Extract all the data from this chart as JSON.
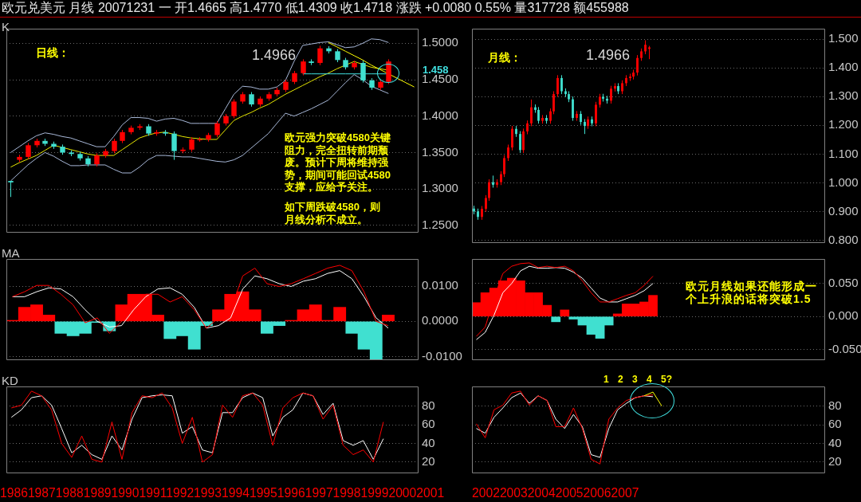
{
  "chart_data": [
    {
      "type": "other",
      "title": "欧元兑美元 月线  20071231 一 开1.4665 高1.4770 低1.4309 收1.4718 涨跌  +0.0080 0.55% 量317728 额455988"
    },
    {
      "type": "candlestick",
      "title": "K",
      "categories": [
        null,
        null,
        null,
        null,
        null,
        null,
        null,
        null,
        null,
        null,
        null,
        null,
        null,
        null,
        null,
        null,
        null,
        null,
        null,
        null,
        null,
        null,
        null,
        null,
        null,
        null,
        null,
        null,
        null,
        null,
        null,
        null,
        null,
        null,
        null,
        null,
        null,
        null,
        null,
        null,
        null,
        null,
        null,
        null,
        null,
        null,
        null,
        null
      ],
      "ohlc": [
        [
          1.311,
          1.311,
          1.289,
          1.309
        ],
        [
          1.34,
          1.347,
          1.337,
          1.344
        ],
        [
          1.344,
          1.363,
          1.341,
          1.36
        ],
        [
          1.36,
          1.369,
          1.357,
          1.366
        ],
        [
          1.366,
          1.369,
          1.359,
          1.362
        ],
        [
          1.362,
          1.365,
          1.355,
          1.358
        ],
        [
          1.358,
          1.361,
          1.347,
          1.35
        ],
        [
          1.35,
          1.353,
          1.345,
          1.348
        ],
        [
          1.348,
          1.351,
          1.339,
          1.342
        ],
        [
          1.342,
          1.345,
          1.331,
          1.334
        ],
        [
          1.334,
          1.349,
          1.331,
          1.346
        ],
        [
          1.346,
          1.355,
          1.343,
          1.352
        ],
        [
          1.352,
          1.369,
          1.349,
          1.366
        ],
        [
          1.366,
          1.381,
          1.363,
          1.378
        ],
        [
          1.378,
          1.387,
          1.375,
          1.384
        ],
        [
          1.384,
          1.389,
          1.381,
          1.386
        ],
        [
          1.386,
          1.389,
          1.373,
          1.376
        ],
        [
          1.376,
          1.381,
          1.373,
          1.378
        ],
        [
          1.378,
          1.381,
          1.373,
          1.376
        ],
        [
          1.376,
          1.379,
          1.34,
          1.352
        ],
        [
          1.352,
          1.357,
          1.349,
          1.354
        ],
        [
          1.354,
          1.371,
          1.351,
          1.368
        ],
        [
          1.368,
          1.371,
          1.365,
          1.368
        ],
        [
          1.368,
          1.377,
          1.365,
          1.374
        ],
        [
          1.374,
          1.393,
          1.371,
          1.39
        ],
        [
          1.39,
          1.403,
          1.387,
          1.4
        ],
        [
          1.4,
          1.423,
          1.397,
          1.42
        ],
        [
          1.42,
          1.433,
          1.417,
          1.43
        ],
        [
          1.43,
          1.433,
          1.413,
          1.416
        ],
        [
          1.416,
          1.427,
          1.413,
          1.424
        ],
        [
          1.424,
          1.433,
          1.421,
          1.43
        ],
        [
          1.43,
          1.439,
          1.427,
          1.436
        ],
        [
          1.436,
          1.45,
          1.433,
          1.447
        ],
        [
          1.447,
          1.462,
          1.444,
          1.459
        ],
        [
          1.459,
          1.478,
          1.456,
          1.475
        ],
        [
          1.475,
          1.478,
          1.47,
          1.473
        ],
        [
          1.473,
          1.4966,
          1.47,
          1.493
        ],
        [
          1.493,
          1.496,
          1.486,
          1.489
        ],
        [
          1.489,
          1.492,
          1.474,
          1.477
        ],
        [
          1.477,
          1.48,
          1.464,
          1.467
        ],
        [
          1.467,
          1.476,
          1.464,
          1.473
        ],
        [
          1.473,
          1.476,
          1.446,
          1.449
        ],
        [
          1.449,
          1.452,
          1.436,
          1.439
        ],
        [
          1.439,
          1.45,
          1.436,
          1.447
        ],
        [
          1.447,
          1.478,
          1.444,
          1.475
        ],
        null,
        null,
        null
      ],
      "colors": [
        "#40e0d0",
        "#ff0000",
        "#ff0000",
        "#ff0000",
        "#40e0d0",
        "#40e0d0",
        "#40e0d0",
        "#40e0d0",
        "#40e0d0",
        "#40e0d0",
        "#ff0000",
        "#ff0000",
        "#ff0000",
        "#ff0000",
        "#ff0000",
        "#ff0000",
        "#40e0d0",
        "#ff0000",
        "#40e0d0",
        "#40e0d0",
        "#ff0000",
        "#ff0000",
        "#ff0000",
        "#ff0000",
        "#ff0000",
        "#ff0000",
        "#ff0000",
        "#ff0000",
        "#40e0d0",
        "#ff0000",
        "#ff0000",
        "#ff0000",
        "#ff0000",
        "#ff0000",
        "#ff0000",
        "#40e0d0",
        "#ff0000",
        "#40e0d0",
        "#40e0d0",
        "#40e0d0",
        "#ff0000",
        "#40e0d0",
        "#40e0d0",
        "#ff0000",
        "#ff0000",
        null,
        null,
        null
      ],
      "series": [
        {
          "type": "line",
          "color": "#a8b8d8",
          "values": [
            1.35,
            1.358,
            1.366,
            1.373,
            1.377,
            1.375,
            1.372,
            1.37,
            1.366,
            1.362,
            1.358,
            1.358,
            1.372,
            1.388,
            1.398,
            1.398,
            1.397,
            1.393,
            1.396,
            1.397,
            1.394,
            1.39,
            1.39,
            1.39,
            1.39,
            1.41,
            1.43,
            1.441,
            1.44,
            1.437,
            1.437,
            1.44,
            1.449,
            1.475,
            1.497,
            1.499,
            1.501,
            1.502,
            1.498,
            1.494,
            1.495,
            1.5,
            1.506,
            1.505,
            1.501,
            null,
            null,
            null
          ]
        },
        {
          "type": "line",
          "color": "#a8b8d8",
          "values": [
            1.311,
            1.322,
            1.333,
            1.342,
            1.35,
            1.345,
            1.338,
            1.332,
            1.332,
            1.333,
            1.333,
            1.333,
            1.327,
            1.322,
            1.322,
            1.33,
            1.34,
            1.346,
            1.346,
            1.345,
            1.344,
            1.344,
            1.342,
            1.34,
            1.338,
            1.337,
            1.34,
            1.346,
            1.356,
            1.366,
            1.376,
            1.39,
            1.404,
            1.4,
            1.405,
            1.41,
            1.416,
            1.422,
            1.434,
            1.446,
            1.457,
            1.45,
            1.441,
            1.436,
            1.431,
            null,
            null,
            null
          ]
        },
        {
          "type": "line",
          "color": "#e6e600",
          "values": [
            1.33,
            1.336,
            1.341,
            1.346,
            1.353,
            1.36,
            1.357,
            1.354,
            1.351,
            1.348,
            1.346,
            1.346,
            1.346,
            1.354,
            1.362,
            1.37,
            1.374,
            1.377,
            1.378,
            1.375,
            1.372,
            1.37,
            1.369,
            1.368,
            1.368,
            1.381,
            1.394,
            1.4,
            1.405,
            1.411,
            1.416,
            1.423,
            1.43,
            1.436,
            1.442,
            1.448,
            1.454,
            1.459,
            1.465,
            1.47,
            1.475,
            1.471,
            1.467,
            1.465,
            1.463,
            null,
            null,
            null
          ]
        },
        {
          "type": "line",
          "color": "#ffff00",
          "values": [
            null,
            null,
            null,
            null,
            null,
            null,
            null,
            null,
            null,
            null,
            null,
            null,
            null,
            null,
            null,
            null,
            null,
            null,
            null,
            null,
            null,
            null,
            null,
            null,
            null,
            null,
            null,
            null,
            null,
            null,
            null,
            null,
            null,
            null,
            null,
            null,
            null,
            1.501,
            1.495,
            1.489,
            1.483,
            1.477,
            1.47,
            1.464,
            1.458,
            1.452,
            1.446,
            1.44
          ]
        },
        {
          "type": "line",
          "color": "#40e0e0",
          "values": [
            null,
            null,
            null,
            null,
            null,
            null,
            null,
            null,
            null,
            null,
            null,
            null,
            null,
            null,
            null,
            null,
            null,
            null,
            null,
            null,
            null,
            null,
            null,
            null,
            null,
            null,
            null,
            null,
            null,
            null,
            null,
            null,
            null,
            null,
            1.458,
            1.458,
            1.458,
            1.458,
            1.458,
            1.458,
            1.458,
            1.458,
            1.458,
            1.458,
            1.458,
            null,
            null,
            null
          ]
        }
      ],
      "ylim": [
        1.24,
        1.52
      ],
      "yticks": [
        {
          "value": 1.25,
          "label": "1.2500"
        },
        {
          "value": 1.3,
          "label": "1.3000"
        },
        {
          "value": 1.35,
          "label": "1.3500"
        },
        {
          "value": 1.4,
          "label": "1.4000"
        },
        {
          "value": 1.45,
          "label": "1.4500"
        },
        {
          "value": 1.5,
          "label": "1.5000"
        }
      ],
      "grid": "y",
      "tick_labels": "y",
      "annotations": [
        "日线：",
        "1.4966",
        "1.458",
        "欧元强力突破4580关键阻力，完全扭转前期颓废。预计下周将维持强势，期间可能回试4580支撑，应给予关注。",
        "如下周跌破4580，则月线分析不成立。"
      ]
    },
    {
      "type": "candlestick",
      "categories": [
        null,
        null,
        null,
        null,
        null,
        null,
        null,
        null,
        null,
        null,
        null,
        null,
        null,
        null,
        null,
        null,
        null,
        null,
        null,
        null,
        null,
        null,
        null,
        null,
        null,
        null,
        null,
        null,
        null,
        null,
        null,
        null,
        null,
        null,
        null,
        null,
        null,
        null,
        null,
        null,
        null,
        null,
        null,
        null,
        null,
        null,
        null,
        null,
        null,
        null,
        null,
        null,
        null,
        null,
        null,
        null,
        null,
        null,
        null,
        null,
        null,
        null,
        null,
        null,
        null,
        null,
        null,
        null,
        null,
        null,
        null,
        null,
        null,
        null,
        null,
        null,
        null,
        null,
        null,
        null,
        null,
        null,
        null,
        null,
        null,
        null,
        null,
        null,
        null,
        null,
        null,
        null,
        null
      ],
      "ohlc": [
        [
          0.91,
          0.92,
          0.89,
          0.9
        ],
        [
          0.9,
          0.91,
          0.871,
          0.881
        ],
        [
          0.881,
          0.919,
          0.871,
          0.909
        ],
        [
          0.909,
          0.957,
          0.899,
          0.947
        ],
        [
          0.947,
          1.012,
          0.937,
          1.002
        ],
        [
          1.002,
          1.025,
          0.983,
          0.993
        ],
        [
          0.993,
          1.012,
          0.983,
          1.002
        ],
        [
          1.002,
          1.04,
          0.992,
          1.03
        ],
        [
          1.03,
          1.096,
          1.02,
          1.086
        ],
        [
          1.086,
          1.133,
          1.076,
          1.123
        ],
        [
          1.123,
          1.198,
          1.113,
          1.188
        ],
        [
          1.188,
          1.198,
          1.16,
          1.17
        ],
        [
          1.17,
          1.18,
          1.104,
          1.114
        ],
        [
          1.114,
          1.189,
          1.104,
          1.179
        ],
        [
          1.179,
          1.217,
          1.169,
          1.207
        ],
        [
          1.207,
          1.29,
          1.197,
          1.263
        ],
        [
          1.263,
          1.273,
          1.244,
          1.254
        ],
        [
          1.254,
          1.264,
          1.206,
          1.216
        ],
        [
          1.216,
          1.236,
          1.206,
          1.226
        ],
        [
          1.226,
          1.236,
          1.206,
          1.216
        ],
        [
          1.216,
          1.259,
          1.206,
          1.249
        ],
        [
          1.249,
          1.319,
          1.239,
          1.309
        ],
        [
          1.309,
          1.375,
          1.299,
          1.365
        ],
        [
          1.365,
          1.375,
          1.309,
          1.319
        ],
        [
          1.319,
          1.329,
          1.299,
          1.309
        ],
        [
          1.309,
          1.319,
          1.281,
          1.291
        ],
        [
          1.291,
          1.301,
          1.216,
          1.226
        ],
        [
          1.226,
          1.25,
          1.216,
          1.24
        ],
        [
          1.24,
          1.25,
          1.202,
          1.212
        ],
        [
          1.212,
          1.222,
          1.17,
          1.198
        ],
        [
          1.198,
          1.231,
          1.188,
          1.221
        ],
        [
          1.221,
          1.231,
          1.197,
          1.207
        ],
        [
          1.207,
          1.282,
          1.197,
          1.272
        ],
        [
          1.272,
          1.31,
          1.262,
          1.3
        ],
        [
          1.3,
          1.31,
          1.283,
          1.293
        ],
        [
          1.293,
          1.303,
          1.276,
          1.286
        ],
        [
          1.286,
          1.338,
          1.276,
          1.328
        ],
        [
          1.328,
          1.347,
          1.318,
          1.337
        ],
        [
          1.337,
          1.347,
          1.309,
          1.319
        ],
        [
          1.319,
          1.357,
          1.309,
          1.347
        ],
        [
          1.347,
          1.375,
          1.337,
          1.365
        ],
        [
          1.365,
          1.38,
          1.355,
          1.37
        ],
        [
          1.37,
          1.394,
          1.36,
          1.384
        ],
        [
          1.384,
          1.445,
          1.374,
          1.435
        ],
        [
          1.435,
          1.468,
          1.425,
          1.458
        ],
        [
          1.458,
          1.4966,
          1.448,
          1.481
        ],
        [
          1.4665,
          1.477,
          1.4309,
          1.4718
        ],
        null,
        null,
        null,
        null,
        null,
        null,
        null,
        null,
        null,
        null,
        null,
        null,
        null,
        null,
        null,
        null,
        null,
        null,
        null,
        null,
        null,
        null,
        null,
        null,
        null,
        null,
        null,
        null,
        null,
        null,
        null,
        null,
        null,
        null,
        null,
        null,
        null,
        null,
        null,
        null,
        null,
        null,
        null,
        null,
        null,
        null
      ],
      "colors": [
        "#40e0d0",
        "#40e0d0",
        "#ff0000",
        "#ff0000",
        "#ff0000",
        "#40e0d0",
        "#ff0000",
        "#ff0000",
        "#ff0000",
        "#ff0000",
        "#ff0000",
        "#40e0d0",
        "#40e0d0",
        "#ff0000",
        "#ff0000",
        "#ff0000",
        "#40e0d0",
        "#40e0d0",
        "#ff0000",
        "#40e0d0",
        "#ff0000",
        "#ff0000",
        "#ff0000",
        "#40e0d0",
        "#40e0d0",
        "#40e0d0",
        "#40e0d0",
        "#ff0000",
        "#40e0d0",
        "#40e0d0",
        "#ff0000",
        "#40e0d0",
        "#ff0000",
        "#ff0000",
        "#40e0d0",
        "#40e0d0",
        "#ff0000",
        "#ff0000",
        "#40e0d0",
        "#ff0000",
        "#ff0000",
        "#ff0000",
        "#ff0000",
        "#ff0000",
        "#ff0000",
        "#ff0000",
        "#ff0000",
        null,
        null,
        null,
        null,
        null,
        null,
        null,
        null,
        null,
        null,
        null,
        null,
        null,
        null,
        null,
        null,
        null,
        null,
        null,
        null,
        null,
        null,
        null,
        null,
        null,
        null,
        null,
        null,
        null,
        null,
        null,
        null,
        null,
        null,
        null,
        null,
        null,
        null,
        null,
        null,
        null,
        null,
        null,
        null,
        null,
        null
      ],
      "ylim": [
        0.79,
        1.537
      ],
      "yticks": [
        {
          "value": 0.8,
          "label": "0.800"
        },
        {
          "value": 0.9,
          "label": "0.900"
        },
        {
          "value": 1.0,
          "label": "1.000"
        },
        {
          "value": 1.1,
          "label": "1.100"
        },
        {
          "value": 1.2,
          "label": "1.200"
        },
        {
          "value": 1.3,
          "label": "1.300"
        },
        {
          "value": 1.4,
          "label": "1.400"
        },
        {
          "value": 1.5,
          "label": "1.500"
        }
      ],
      "grid": "y",
      "tick_labels": "y",
      "annotations": [
        "月线：",
        "1.4966"
      ]
    },
    {
      "type": "bar",
      "title": "MA",
      "categories": [
        null,
        null,
        null,
        null,
        null,
        null,
        null,
        null,
        null,
        null,
        null,
        null,
        null,
        null,
        null,
        null,
        null,
        null,
        null,
        null,
        null,
        null,
        null,
        null,
        null,
        null,
        null,
        null,
        null,
        null,
        null,
        null,
        null,
        null
      ],
      "series": [
        {
          "type": "bar",
          "values": [
            0.0003,
            0.004,
            0.0047,
            0.0018,
            -0.0034,
            -0.0041,
            -0.0034,
            -0.0003,
            -0.0027,
            0.0047,
            0.0077,
            0.0077,
            0.0018,
            -0.0049,
            -0.0041,
            -0.0079,
            -0.0012,
            0.0033,
            0.0077,
            0.0084,
            0.0033,
            -0.0034,
            -0.0012,
            0.0003,
            0.0033,
            0.0047,
            0.0003,
            0.004,
            -0.0034,
            -0.0079,
            -0.0108,
            0.0018,
            null,
            null
          ],
          "colors": [
            "#ff0000",
            "#ff0000",
            "#ff0000",
            "#ff0000",
            "#40e0d0",
            "#40e0d0",
            "#40e0d0",
            "#40e0d0",
            "#40e0d0",
            "#ff0000",
            "#ff0000",
            "#ff0000",
            "#ff0000",
            "#40e0d0",
            "#40e0d0",
            "#40e0d0",
            "#40e0d0",
            "#ff0000",
            "#ff0000",
            "#ff0000",
            "#ff0000",
            "#40e0d0",
            "#40e0d0",
            "#ff0000",
            "#ff0000",
            "#ff0000",
            "#ff0000",
            "#ff0000",
            "#40e0d0",
            "#40e0d0",
            "#40e0d0",
            "#ff0000",
            null,
            null
          ]
        },
        {
          "type": "line",
          "color": "#ffffff",
          "values": [
            0.007,
            0.007,
            0.0084,
            0.0095,
            0.0092,
            0.007,
            0.0033,
            0,
            -0.0016,
            -0.0012,
            0.0033,
            0.007,
            0.0092,
            0.0095,
            0.0077,
            0.004,
            -0.0019,
            -0.0012,
            0.001,
            0.0092,
            0.0129,
            0.0121,
            0.0107,
            0.0099,
            0.0114,
            0.0121,
            0.0136,
            0.0144,
            0.0121,
            0.007,
            0.001,
            -0.0019,
            null,
            null
          ]
        },
        {
          "type": "line",
          "color": "#ff0000",
          "values": [
            0.007,
            0.0084,
            0.0102,
            0.0102,
            0.0077,
            0.0047,
            -0.0004,
            0.001,
            -0.0034,
            0,
            0.0055,
            0.0077,
            0.0077,
            0.0055,
            0.007,
            0.0033,
            -0.0019,
            0.001,
            0.0033,
            0.0129,
            0.0151,
            0.0107,
            0.0099,
            0.0107,
            0.0121,
            0.0136,
            0.0151,
            0.0159,
            0.0144,
            0.0084,
            0,
            -0.0012,
            null,
            null
          ]
        }
      ],
      "ylim": [
        -0.011,
        0.0177
      ],
      "yticks": [
        {
          "value": -0.01,
          "label": "-0.0100"
        },
        {
          "value": 0,
          "label": "0.0000"
        },
        {
          "value": 0.01,
          "label": "0.0100"
        }
      ],
      "grid": "y",
      "tick_labels": "y"
    },
    {
      "type": "bar",
      "categories": [
        null,
        null,
        null,
        null,
        null,
        null,
        null,
        null,
        null,
        null,
        null,
        null,
        null,
        null,
        null,
        null,
        null,
        null,
        null,
        null,
        null,
        null,
        null,
        null,
        null,
        null,
        null,
        null,
        null,
        null,
        null,
        null,
        null,
        null,
        null,
        null,
        null,
        null,
        null,
        null
      ],
      "series": [
        {
          "type": "bar",
          "values": [
            0.021,
            0.036,
            0.043,
            0.054,
            0.058,
            0.054,
            0.036,
            0.036,
            0.017,
            -0.008,
            0.01,
            -0.004,
            -0.013,
            -0.027,
            -0.033,
            -0.013,
            0.004,
            0.019,
            0.019,
            0.022,
            0.032,
            null,
            null,
            null,
            null,
            null,
            null,
            null,
            null,
            null,
            null,
            null,
            null,
            null,
            null,
            null,
            null,
            null,
            null,
            null
          ],
          "colors": [
            "#ff0000",
            "#ff0000",
            "#ff0000",
            "#ff0000",
            "#ff0000",
            "#ff0000",
            "#ff0000",
            "#ff0000",
            "#ff0000",
            "#40e0d0",
            "#ff0000",
            "#40e0d0",
            "#40e0d0",
            "#40e0d0",
            "#40e0d0",
            "#40e0d0",
            "#ff0000",
            "#ff0000",
            "#ff0000",
            "#ff0000",
            "#ff0000",
            null,
            null,
            null,
            null,
            null,
            null,
            null,
            null,
            null,
            null,
            null,
            null,
            null,
            null,
            null,
            null,
            null,
            null,
            null
          ]
        },
        {
          "type": "line",
          "color": "#ffffff",
          "values": [
            -0.035,
            -0.024,
            0.002,
            0.036,
            0.05,
            0.069,
            0.076,
            0.073,
            0.073,
            0.074,
            0.073,
            0.067,
            0.058,
            0.043,
            0.028,
            0.022,
            0.022,
            0.027,
            0.032,
            0.039,
            0.05,
            null,
            null,
            null,
            null,
            null,
            null,
            null,
            null,
            null,
            null,
            null,
            null,
            null,
            null,
            null,
            null,
            null,
            null,
            null
          ]
        },
        {
          "type": "line",
          "color": "#ff0000",
          "values": [
            -0.03,
            -0.016,
            0.028,
            0.065,
            0.076,
            0.08,
            0.081,
            0.074,
            0.076,
            0.074,
            0.076,
            0.069,
            0.054,
            0.036,
            0.022,
            0.022,
            0.027,
            0.032,
            0.036,
            0.047,
            0.061,
            null,
            null,
            null,
            null,
            null,
            null,
            null,
            null,
            null,
            null,
            null,
            null,
            null,
            null,
            null,
            null,
            null,
            null,
            null
          ]
        }
      ],
      "ylim": [
        -0.066,
        0.087
      ],
      "yticks": [
        {
          "value": -0.05,
          "label": "-0.050"
        },
        {
          "value": 0,
          "label": "0.000"
        },
        {
          "value": 0.05,
          "label": "0.050"
        }
      ],
      "grid": "y",
      "tick_labels": "y",
      "annotations": [
        "欧元月线如果还能形成一个上升浪的话将突破1.5"
      ]
    },
    {
      "type": "line",
      "title": "KD",
      "categories": [
        null,
        null,
        null,
        null,
        null,
        null,
        null,
        null,
        null,
        null,
        null,
        null,
        null,
        null,
        null,
        null,
        null,
        null,
        null,
        null,
        null,
        null,
        null,
        null,
        null,
        null,
        null,
        null,
        null,
        null,
        null,
        null,
        null,
        null,
        null,
        null,
        null,
        null,
        null,
        null,
        null
      ],
      "series": [
        {
          "type": "line",
          "color": "#ffffff",
          "values": [
            68,
            76,
            89,
            91,
            81,
            56,
            30,
            38,
            28,
            23,
            48,
            33,
            66,
            89,
            91,
            92,
            91,
            51,
            58,
            33,
            30,
            73,
            73,
            89,
            94,
            89,
            48,
            68,
            76,
            94,
            91,
            71,
            83,
            43,
            38,
            43,
            23,
            45,
            null,
            null,
            null
          ]
        },
        {
          "type": "line",
          "color": "#ff0000",
          "values": [
            78,
            81,
            96,
            91,
            76,
            40,
            25,
            48,
            23,
            20,
            63,
            23,
            73,
            91,
            89,
            94,
            78,
            40,
            68,
            20,
            28,
            81,
            68,
            91,
            94,
            81,
            38,
            78,
            89,
            94,
            91,
            66,
            81,
            38,
            28,
            33,
            20,
            63,
            null,
            null,
            null
          ]
        }
      ],
      "ylim": [
        8,
        101
      ],
      "yticks": [
        20,
        40,
        60,
        80
      ],
      "grid": "y",
      "tick_labels": "y",
      "annotations": [
        "1986198719881989199019911992199319941995199619971998199920002001"
      ]
    },
    {
      "type": "line",
      "categories": [
        null,
        null,
        null,
        null,
        null,
        null,
        null,
        null,
        null,
        null,
        null,
        null,
        null,
        null,
        null,
        null,
        null,
        null,
        null,
        null,
        null,
        null,
        null,
        null,
        null,
        null,
        null,
        null,
        null,
        null,
        null,
        null,
        null,
        null,
        null,
        null,
        null,
        null,
        null,
        null
      ],
      "series": [
        {
          "type": "line",
          "color": "#ffffff",
          "values": [
            56,
            51,
            68,
            78,
            89,
            94,
            83,
            91,
            86,
            66,
            56,
            71,
            58,
            28,
            25,
            56,
            76,
            83,
            89,
            91,
            90,
            null,
            null,
            null,
            null,
            null,
            null,
            null,
            null,
            null,
            null,
            null,
            null,
            null,
            null,
            null,
            null,
            null,
            null,
            null
          ]
        },
        {
          "type": "line",
          "color": "#ff0000",
          "values": [
            61,
            46,
            76,
            81,
            94,
            96,
            81,
            91,
            86,
            58,
            58,
            78,
            56,
            23,
            18,
            66,
            78,
            86,
            89,
            91,
            92,
            null,
            null,
            null,
            null,
            null,
            null,
            null,
            null,
            null,
            null,
            null,
            null,
            null,
            null,
            null,
            null,
            null,
            null,
            null
          ]
        },
        {
          "type": "line",
          "color": "#ffff00",
          "values": [
            null,
            null,
            null,
            null,
            null,
            null,
            null,
            null,
            null,
            null,
            null,
            null,
            null,
            null,
            null,
            null,
            null,
            null,
            null,
            91,
            95,
            80,
            null,
            null,
            null,
            null,
            null,
            null,
            null,
            null,
            null,
            null,
            null,
            null,
            null,
            null,
            null,
            null,
            null,
            null
          ]
        }
      ],
      "ylim": [
        8,
        101
      ],
      "yticks": [
        20,
        40,
        60,
        80
      ],
      "grid": "y",
      "tick_labels": "y",
      "annotations": [
        "1 2 3 4 5?",
        "200220032004200520062007"
      ]
    }
  ]
}
